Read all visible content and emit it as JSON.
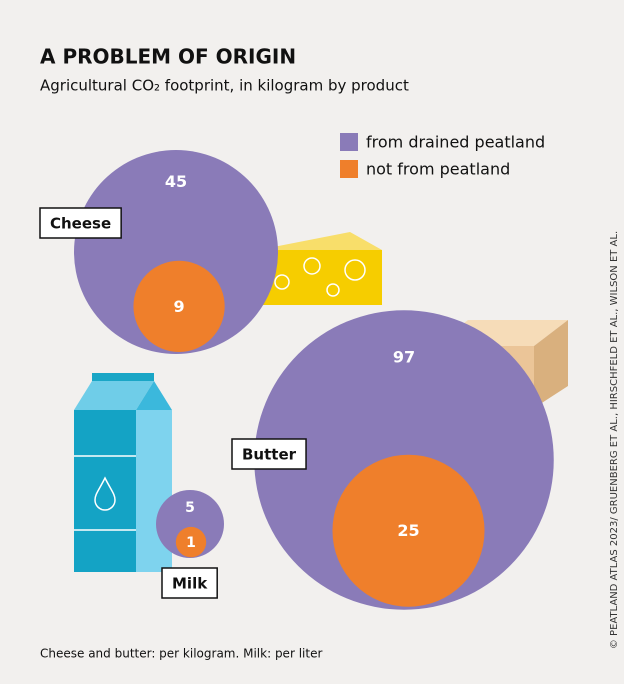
{
  "chart_data": {
    "type": "bubble",
    "title": "A PROBLEM OF ORIGIN",
    "subtitle": "Agricultural CO₂ footprint, in kilogram by product",
    "categories": [
      "Cheese",
      "Butter",
      "Milk"
    ],
    "series": [
      {
        "name": "from drained peatland",
        "color": "#8a7bb8",
        "values": [
          45,
          97,
          5
        ]
      },
      {
        "name": "not from peatland",
        "color": "#ef7f2b",
        "values": [
          9,
          25,
          1
        ]
      }
    ],
    "legend": "top-right",
    "footnote": "Cheese and butter: per kilogram. Milk: per liter",
    "source": "© PEATLAND ATLAS 2023/ GRUENBERG ET AL., HIRSCHFELD ET AL., WILSON ET AL."
  }
}
